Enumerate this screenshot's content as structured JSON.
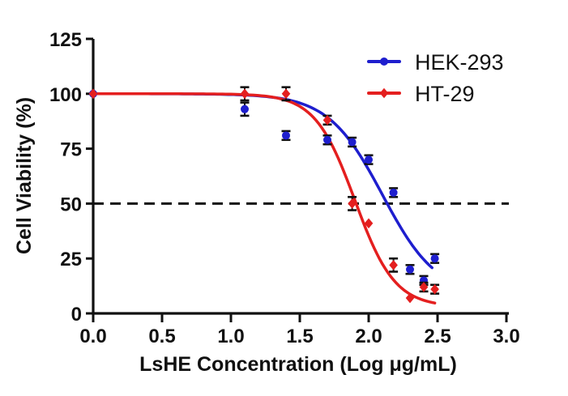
{
  "figure": {
    "background": "#ffffff",
    "axis_color": "#111111",
    "text_color": "#111111"
  },
  "chart_data": {
    "type": "scatter",
    "title": "",
    "xlabel": "LsHE Concentration (Log μg/mL)",
    "ylabel": "Cell Viability (%)",
    "xlim": [
      0.0,
      3.0
    ],
    "ylim": [
      0,
      125
    ],
    "x_ticks": [
      "0.0",
      "0.5",
      "1.0",
      "1.5",
      "2.0",
      "2.5",
      "3.0"
    ],
    "y_ticks": [
      "0",
      "25",
      "50",
      "75",
      "100",
      "125"
    ],
    "grid": false,
    "legend_position": "top-right",
    "reference_line": {
      "y": 50,
      "style": "dashed",
      "color": "#111111",
      "meaning": "50% viability (IC50) line"
    },
    "series": [
      {
        "name": "HEK-293",
        "color": "#1E1ECE",
        "marker": "circle",
        "x": [
          0.0,
          1.1,
          1.4,
          1.7,
          1.88,
          2.0,
          2.18,
          2.3,
          2.4,
          2.48
        ],
        "y": [
          100,
          93,
          81,
          79,
          78,
          70,
          55,
          20,
          15,
          25
        ],
        "error": [
          0,
          3,
          2,
          2,
          2,
          2,
          2,
          2,
          2,
          2
        ],
        "fit": {
          "type": "4PL",
          "top": 100,
          "bottom": 8,
          "logIC50": 2.1,
          "hill": 2.2,
          "range": [
            0,
            2.47
          ]
        }
      },
      {
        "name": "HT-29",
        "color": "#E41F1F",
        "marker": "diamond",
        "x": [
          0.0,
          1.1,
          1.4,
          1.7,
          1.88,
          2.0,
          2.18,
          2.3,
          2.4,
          2.48
        ],
        "y": [
          100,
          100,
          100,
          88,
          50,
          41,
          22,
          7,
          12,
          11
        ],
        "error": [
          0,
          3,
          3,
          2,
          3,
          0,
          3,
          0,
          2,
          2
        ],
        "fit": {
          "type": "4PL",
          "top": 100,
          "bottom": 3,
          "logIC50": 1.9,
          "hill": 3.0,
          "range": [
            0,
            2.48
          ]
        }
      }
    ],
    "error_bar_color": "#111111"
  }
}
